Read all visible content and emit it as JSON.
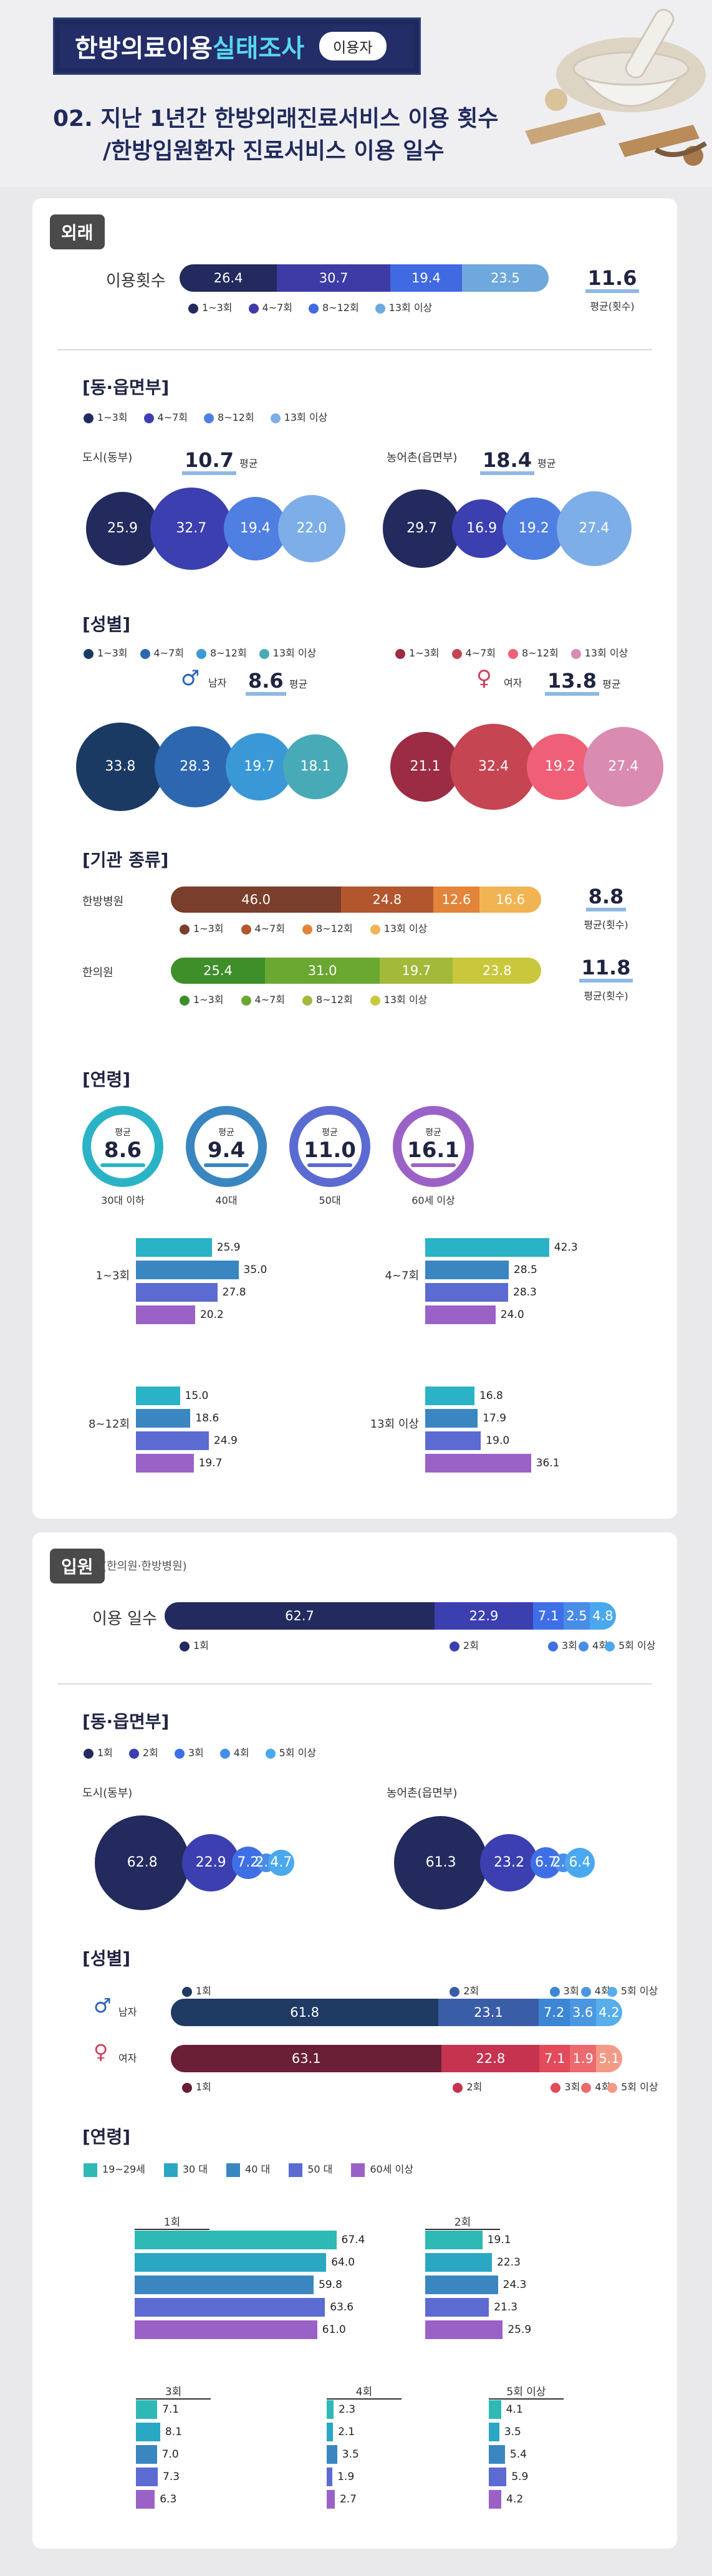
{
  "header": {
    "title_main": "한방의료이용",
    "title_accent": "실태조사",
    "tag": "이용자",
    "subtitle_line1": "02. 지난 1년간 한방외래진료서비스 이용 횟수",
    "subtitle_line2": "/한방입원환자 진료서비스 이용 일수"
  },
  "outpatient": {
    "chip": "외래",
    "usage_label": "이용횟수",
    "avg_value": "11.6",
    "avg_caption": "평균(횟수)",
    "region_title": "[동·읍면부]",
    "city_label": "도시(동부)",
    "city_avg": "10.7",
    "rural_label": "농어촌(읍면부)",
    "rural_avg": "18.4",
    "avg_word": "평균",
    "gender_title": "[성별]",
    "male_label": "남자",
    "male_avg": "8.6",
    "female_label": "여자",
    "female_avg": "13.8",
    "inst_title": "[기관 종류]",
    "hospital_label": "한방병원",
    "hospital_avg": "8.8",
    "clinic_label": "한의원",
    "clinic_avg": "11.8",
    "age_title": "[연령]",
    "age_avg_caption": "평균"
  },
  "inpatient": {
    "chip": "입원",
    "chip_note": "(한의원·한방병원)",
    "usage_label": "이용 일수",
    "region_title": "[동·읍면부]",
    "city_label": "도시(동부)",
    "rural_label": "농어촌(읍면부)",
    "gender_title": "[성별]",
    "male_label": "남자",
    "female_label": "여자",
    "age_title": "[연령]"
  },
  "colors": {
    "navy": "#232a5e",
    "indigo": "#3d3ba6",
    "blue": "#4169e1",
    "sky": "#6ea8dc",
    "teal": "#2ab3c6",
    "steel": "#3a86c0",
    "purple": "#9a62c6"
  },
  "chart_data": [
    {
      "type": "bar",
      "id": "outpatient_total",
      "categories": [
        "1~3회",
        "4~7회",
        "8~12회",
        "13회 이상"
      ],
      "values": [
        26.4,
        30.7,
        19.4,
        23.5
      ]
    },
    {
      "type": "bar",
      "id": "outpatient_region",
      "categories": [
        "1~3회",
        "4~7회",
        "8~12회",
        "13회 이상"
      ],
      "series": [
        {
          "name": "도시(동부)",
          "values": [
            25.9,
            32.7,
            19.4,
            22.0
          ]
        },
        {
          "name": "농어촌(읍면부)",
          "values": [
            29.7,
            16.9,
            19.2,
            27.4
          ]
        }
      ]
    },
    {
      "type": "bar",
      "id": "outpatient_gender",
      "categories": [
        "1~3회",
        "4~7회",
        "8~12회",
        "13회 이상"
      ],
      "series": [
        {
          "name": "남자",
          "values": [
            33.8,
            28.3,
            19.7,
            18.1
          ]
        },
        {
          "name": "여자",
          "values": [
            21.1,
            32.4,
            19.2,
            27.4
          ]
        }
      ]
    },
    {
      "type": "bar",
      "id": "outpatient_institution",
      "categories": [
        "1~3회",
        "4~7회",
        "8~12회",
        "13회 이상"
      ],
      "series": [
        {
          "name": "한방병원",
          "values": [
            46.0,
            24.8,
            12.6,
            16.6
          ]
        },
        {
          "name": "한의원",
          "values": [
            25.4,
            31.0,
            19.7,
            23.8
          ]
        }
      ]
    },
    {
      "type": "bar",
      "id": "outpatient_age",
      "age_groups": [
        "30대 이하",
        "40대",
        "50대",
        "60세 이상"
      ],
      "averages": [
        8.6,
        9.4,
        11.0,
        16.1
      ],
      "categories": [
        "1~3회",
        "4~7회",
        "8~12회",
        "13회 이상"
      ],
      "values_by_category": [
        [
          25.9,
          35.0,
          27.8,
          20.2
        ],
        [
          42.3,
          28.5,
          28.3,
          24.0
        ],
        [
          15.0,
          18.6,
          24.9,
          19.7
        ],
        [
          16.8,
          17.9,
          19.0,
          36.1
        ]
      ]
    },
    {
      "type": "bar",
      "id": "inpatient_total",
      "categories": [
        "1회",
        "2회",
        "3회",
        "4회",
        "5회 이상"
      ],
      "values": [
        62.7,
        22.9,
        7.1,
        2.5,
        4.8
      ]
    },
    {
      "type": "bar",
      "id": "inpatient_region",
      "categories": [
        "1회",
        "2회",
        "3회",
        "4회",
        "5회 이상"
      ],
      "series": [
        {
          "name": "도시(동부)",
          "values": [
            62.8,
            22.9,
            7.2,
            2.5,
            4.7
          ]
        },
        {
          "name": "농어촌(읍면부)",
          "values": [
            61.3,
            23.2,
            6.7,
            2.3,
            6.4
          ]
        }
      ]
    },
    {
      "type": "bar",
      "id": "inpatient_gender",
      "categories": [
        "1회",
        "2회",
        "3회",
        "4회",
        "5회 이상"
      ],
      "series": [
        {
          "name": "남자",
          "values": [
            61.8,
            23.1,
            7.2,
            3.6,
            4.2
          ]
        },
        {
          "name": "여자",
          "values": [
            63.1,
            22.8,
            7.1,
            1.9,
            5.1
          ]
        }
      ]
    },
    {
      "type": "bar",
      "id": "inpatient_age",
      "age_groups": [
        "19~29세",
        "30 대",
        "40 대",
        "50 대",
        "60세 이상"
      ],
      "categories": [
        "1회",
        "2회",
        "3회",
        "4회",
        "5회 이상"
      ],
      "values_by_category": [
        [
          67.4,
          64.0,
          59.8,
          63.6,
          61.0
        ],
        [
          19.1,
          22.3,
          24.3,
          21.3,
          25.9
        ],
        [
          7.1,
          8.1,
          7.0,
          7.3,
          6.3
        ],
        [
          2.3,
          2.1,
          3.5,
          1.9,
          2.7
        ],
        [
          4.1,
          3.5,
          5.4,
          5.9,
          4.2
        ]
      ]
    }
  ]
}
